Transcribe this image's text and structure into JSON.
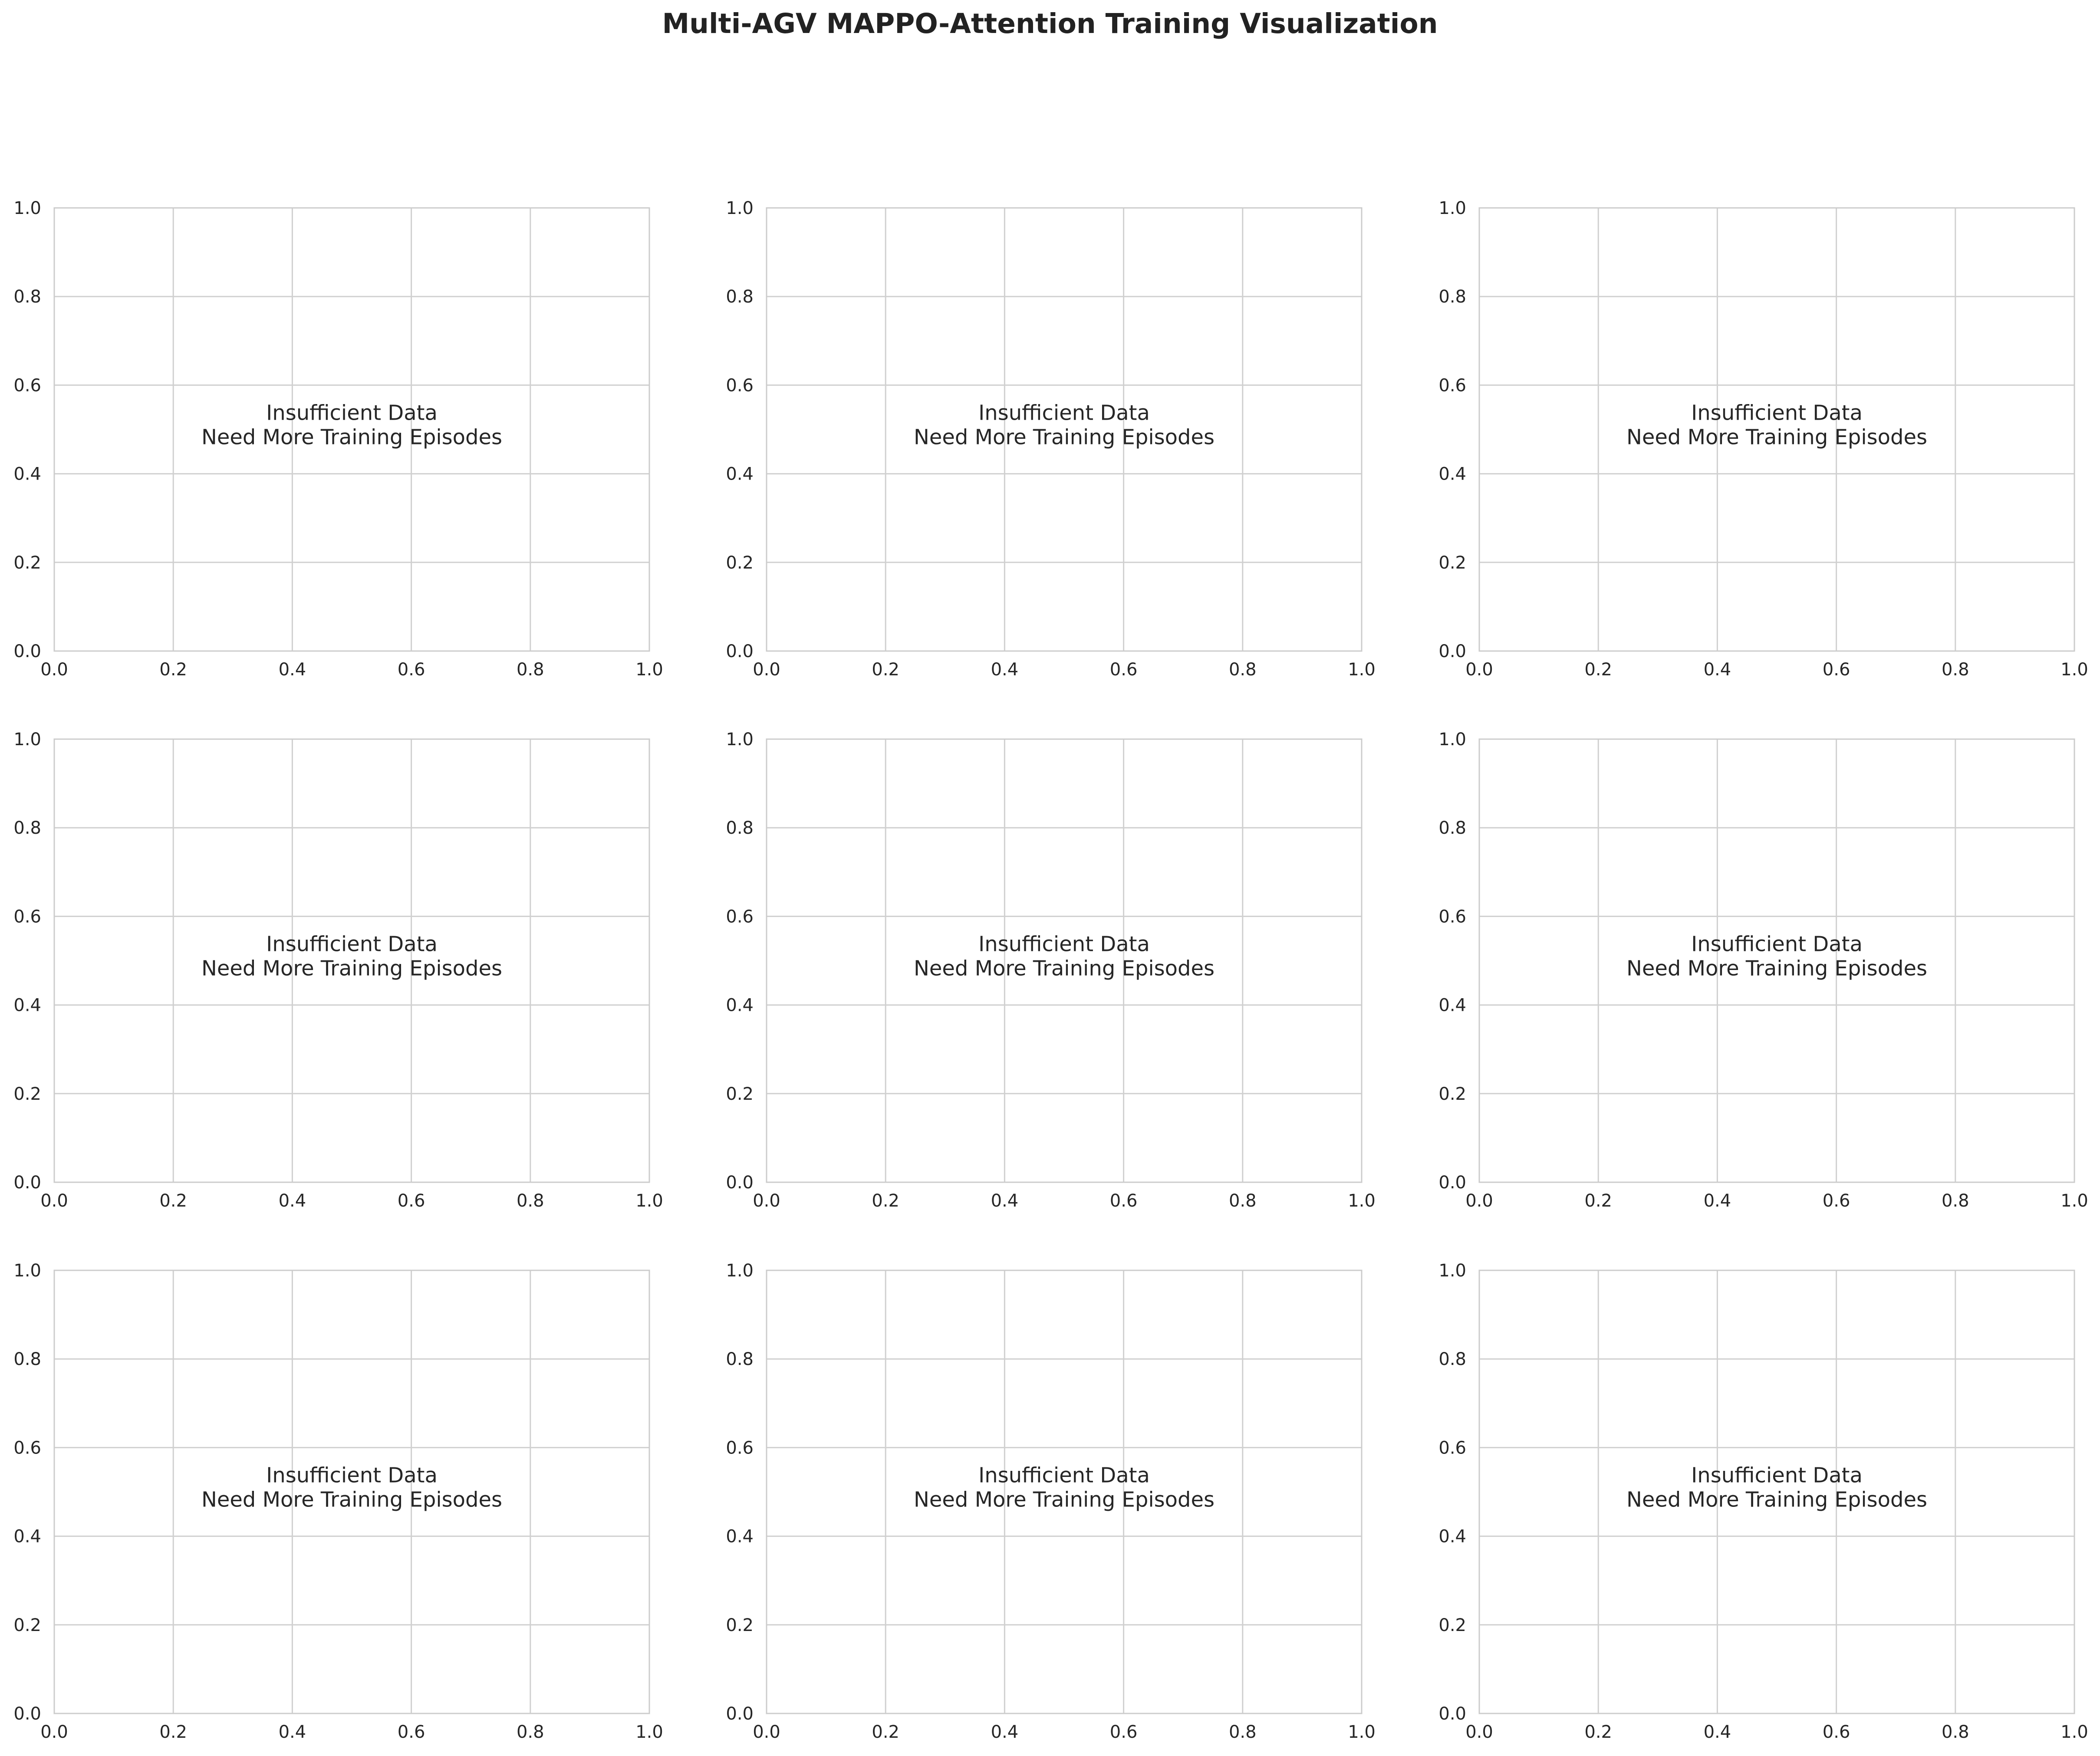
{
  "figure": {
    "title": "Multi-AGV MAPPO-Attention Training Visualization"
  },
  "colors": {
    "grid": "#d0d0d0",
    "spine": "#cccccc",
    "text": "#262626",
    "title": "#222222"
  },
  "chart_data": [
    {
      "type": "line",
      "title": "",
      "xlabel": "",
      "ylabel": "",
      "xlim": [
        0,
        1
      ],
      "ylim": [
        0,
        1
      ],
      "xticks": [
        "0.0",
        "0.2",
        "0.4",
        "0.6",
        "0.8",
        "1.0"
      ],
      "yticks": [
        "0.0",
        "0.2",
        "0.4",
        "0.6",
        "0.8",
        "1.0"
      ],
      "grid": true,
      "series": [],
      "annotation": [
        "Insufficient Data",
        "Need More Training Episodes"
      ]
    },
    {
      "type": "line",
      "title": "",
      "xlabel": "",
      "ylabel": "",
      "xlim": [
        0,
        1
      ],
      "ylim": [
        0,
        1
      ],
      "xticks": [
        "0.0",
        "0.2",
        "0.4",
        "0.6",
        "0.8",
        "1.0"
      ],
      "yticks": [
        "0.0",
        "0.2",
        "0.4",
        "0.6",
        "0.8",
        "1.0"
      ],
      "grid": true,
      "series": [],
      "annotation": [
        "Insufficient Data",
        "Need More Training Episodes"
      ]
    },
    {
      "type": "line",
      "title": "",
      "xlabel": "",
      "ylabel": "",
      "xlim": [
        0,
        1
      ],
      "ylim": [
        0,
        1
      ],
      "xticks": [
        "0.0",
        "0.2",
        "0.4",
        "0.6",
        "0.8",
        "1.0"
      ],
      "yticks": [
        "0.0",
        "0.2",
        "0.4",
        "0.6",
        "0.8",
        "1.0"
      ],
      "grid": true,
      "series": [],
      "annotation": [
        "Insufficient Data",
        "Need More Training Episodes"
      ]
    },
    {
      "type": "line",
      "title": "",
      "xlabel": "",
      "ylabel": "",
      "xlim": [
        0,
        1
      ],
      "ylim": [
        0,
        1
      ],
      "xticks": [
        "0.0",
        "0.2",
        "0.4",
        "0.6",
        "0.8",
        "1.0"
      ],
      "yticks": [
        "0.0",
        "0.2",
        "0.4",
        "0.6",
        "0.8",
        "1.0"
      ],
      "grid": true,
      "series": [],
      "annotation": [
        "Insufficient Data",
        "Need More Training Episodes"
      ]
    },
    {
      "type": "line",
      "title": "",
      "xlabel": "",
      "ylabel": "",
      "xlim": [
        0,
        1
      ],
      "ylim": [
        0,
        1
      ],
      "xticks": [
        "0.0",
        "0.2",
        "0.4",
        "0.6",
        "0.8",
        "1.0"
      ],
      "yticks": [
        "0.0",
        "0.2",
        "0.4",
        "0.6",
        "0.8",
        "1.0"
      ],
      "grid": true,
      "series": [],
      "annotation": [
        "Insufficient Data",
        "Need More Training Episodes"
      ]
    },
    {
      "type": "line",
      "title": "",
      "xlabel": "",
      "ylabel": "",
      "xlim": [
        0,
        1
      ],
      "ylim": [
        0,
        1
      ],
      "xticks": [
        "0.0",
        "0.2",
        "0.4",
        "0.6",
        "0.8",
        "1.0"
      ],
      "yticks": [
        "0.0",
        "0.2",
        "0.4",
        "0.6",
        "0.8",
        "1.0"
      ],
      "grid": true,
      "series": [],
      "annotation": [
        "Insufficient Data",
        "Need More Training Episodes"
      ]
    },
    {
      "type": "line",
      "title": "",
      "xlabel": "",
      "ylabel": "",
      "xlim": [
        0,
        1
      ],
      "ylim": [
        0,
        1
      ],
      "xticks": [
        "0.0",
        "0.2",
        "0.4",
        "0.6",
        "0.8",
        "1.0"
      ],
      "yticks": [
        "0.0",
        "0.2",
        "0.4",
        "0.6",
        "0.8",
        "1.0"
      ],
      "grid": true,
      "series": [],
      "annotation": [
        "Insufficient Data",
        "Need More Training Episodes"
      ]
    },
    {
      "type": "line",
      "title": "",
      "xlabel": "",
      "ylabel": "",
      "xlim": [
        0,
        1
      ],
      "ylim": [
        0,
        1
      ],
      "xticks": [
        "0.0",
        "0.2",
        "0.4",
        "0.6",
        "0.8",
        "1.0"
      ],
      "yticks": [
        "0.0",
        "0.2",
        "0.4",
        "0.6",
        "0.8",
        "1.0"
      ],
      "grid": true,
      "series": [],
      "annotation": [
        "Insufficient Data",
        "Need More Training Episodes"
      ]
    },
    {
      "type": "line",
      "title": "",
      "xlabel": "",
      "ylabel": "",
      "xlim": [
        0,
        1
      ],
      "ylim": [
        0,
        1
      ],
      "xticks": [
        "0.0",
        "0.2",
        "0.4",
        "0.6",
        "0.8",
        "1.0"
      ],
      "yticks": [
        "0.0",
        "0.2",
        "0.4",
        "0.6",
        "0.8",
        "1.0"
      ],
      "grid": true,
      "series": [],
      "annotation": [
        "Insufficient Data",
        "Need More Training Episodes"
      ]
    }
  ]
}
